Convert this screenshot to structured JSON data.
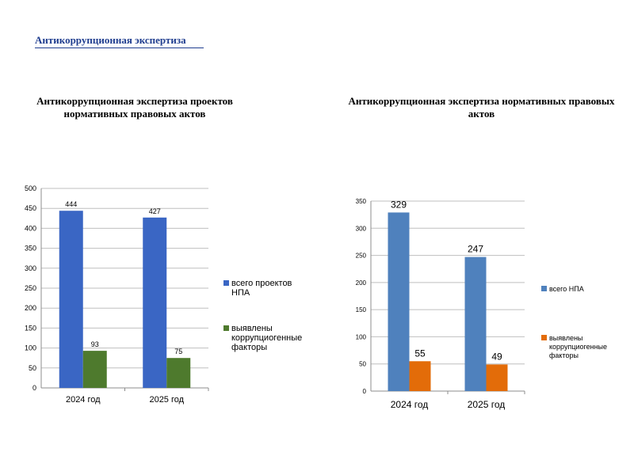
{
  "page": {
    "heading": "Антикоррупционная экспертиза"
  },
  "colors": {
    "heading": "#1f3d8f",
    "left_series1": "#3a66c4",
    "left_series2": "#4e7a2d",
    "right_series1": "#4f81bd",
    "right_series2": "#e36c09",
    "grid": "#bfbfbf"
  },
  "chart_data": [
    {
      "type": "bar",
      "title": "Антикоррупционная экспертиза проектов нормативных правовых актов",
      "categories": [
        "2024 год",
        "2025 год"
      ],
      "series": [
        {
          "name": "всего проектов НПА",
          "values": [
            444,
            427
          ]
        },
        {
          "name": "выявлены коррупциогенные факторы",
          "values": [
            93,
            75
          ]
        }
      ],
      "ylim": [
        0,
        500
      ],
      "yticks": [
        0,
        50,
        100,
        150,
        200,
        250,
        300,
        350,
        400,
        450,
        500
      ],
      "xlabel": "",
      "ylabel": "",
      "grid": true,
      "legend": "right"
    },
    {
      "type": "bar",
      "title": "Антикоррупционная экспертиза нормативных правовых актов",
      "categories": [
        "2024 год",
        "2025 год"
      ],
      "series": [
        {
          "name": "всего НПА",
          "values": [
            329,
            247
          ]
        },
        {
          "name": "выявлены коррупциогенные факторы",
          "values": [
            55,
            49
          ]
        }
      ],
      "ylim": [
        0,
        350
      ],
      "yticks": [
        0,
        50,
        100,
        150,
        200,
        250,
        300,
        350
      ],
      "xlabel": "",
      "ylabel": "",
      "grid": true,
      "legend": "right"
    }
  ]
}
